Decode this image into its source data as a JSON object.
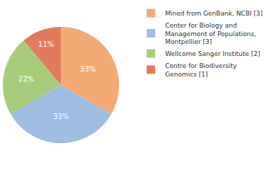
{
  "chart_data": {
    "type": "pie",
    "categories": [
      "Mined from GenBank, NCBI [3]",
      "Center for Biology and\nManagement of Populations,\nMontpellier [3]",
      "Wellcome Sanger Institute [2]",
      "Centre for Biodiversity\nGenomics [1]"
    ],
    "values": [
      33,
      33,
      22,
      11
    ],
    "value_labels": [
      "33%",
      "33%",
      "22%",
      "11%"
    ],
    "colors": [
      "#f2ab74",
      "#a0bde2",
      "#a7cd7c",
      "#e27b5e"
    ],
    "data_labels": true,
    "legend": "right"
  }
}
